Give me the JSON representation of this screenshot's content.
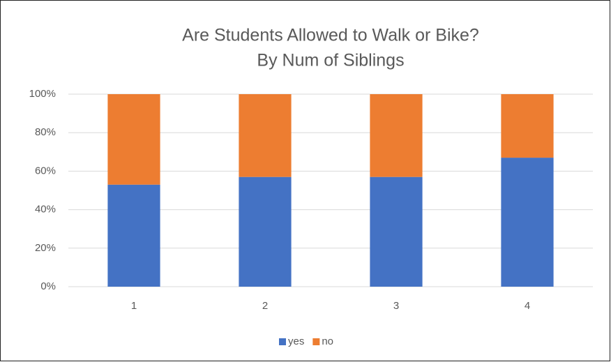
{
  "chart_data": {
    "type": "stacked_bar",
    "title": "Are Students Allowed to Walk or Bike?",
    "subtitle": "By Num of Siblings",
    "categories": [
      "1",
      "2",
      "3",
      "4"
    ],
    "series": [
      {
        "name": "yes",
        "color": "#4472c4",
        "values": [
          53,
          57,
          57,
          67
        ]
      },
      {
        "name": "no",
        "color": "#ed7d31",
        "values": [
          47,
          43,
          43,
          33
        ]
      }
    ],
    "ylim": [
      0,
      100
    ],
    "yticks": [
      {
        "value": 0,
        "label": "0%"
      },
      {
        "value": 20,
        "label": "20%"
      },
      {
        "value": 40,
        "label": "40%"
      },
      {
        "value": 60,
        "label": "60%"
      },
      {
        "value": 80,
        "label": "80%"
      },
      {
        "value": 100,
        "label": "100%"
      }
    ],
    "grid": true,
    "legend": "bottom"
  }
}
